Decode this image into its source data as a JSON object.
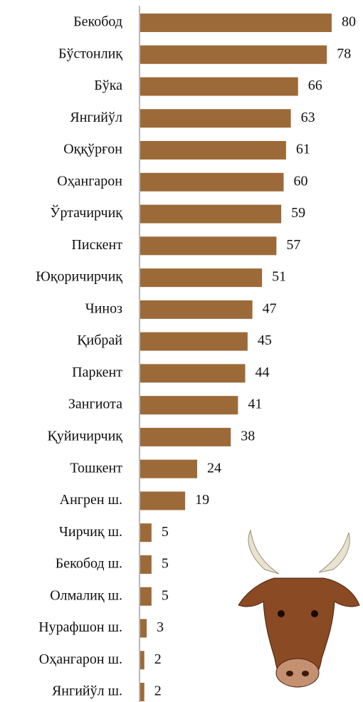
{
  "chart_data": {
    "type": "bar",
    "orientation": "horizontal",
    "categories": [
      "Бекобод",
      "Бўстонлиқ",
      "Бўка",
      "Янгийўл",
      "Оққўрғон",
      "Оҳангарон",
      "Ўртачирчиқ",
      "Пискент",
      "Юқоричирчиқ",
      "Чиноз",
      "Қибрай",
      "Паркент",
      "Зангиота",
      "Қуйичирчиқ",
      "Тошкент",
      "Ангрен ш.",
      "Чирчиқ ш.",
      "Бекобод ш.",
      "Олмалиқ ш.",
      "Нурафшон ш.",
      "Оҳангарон ш.",
      "Янгийўл ш."
    ],
    "values": [
      80,
      78,
      66,
      63,
      61,
      60,
      59,
      57,
      51,
      47,
      45,
      44,
      41,
      38,
      24,
      19,
      5,
      5,
      5,
      3,
      2,
      2
    ],
    "color": "#9c6a38"
  }
}
